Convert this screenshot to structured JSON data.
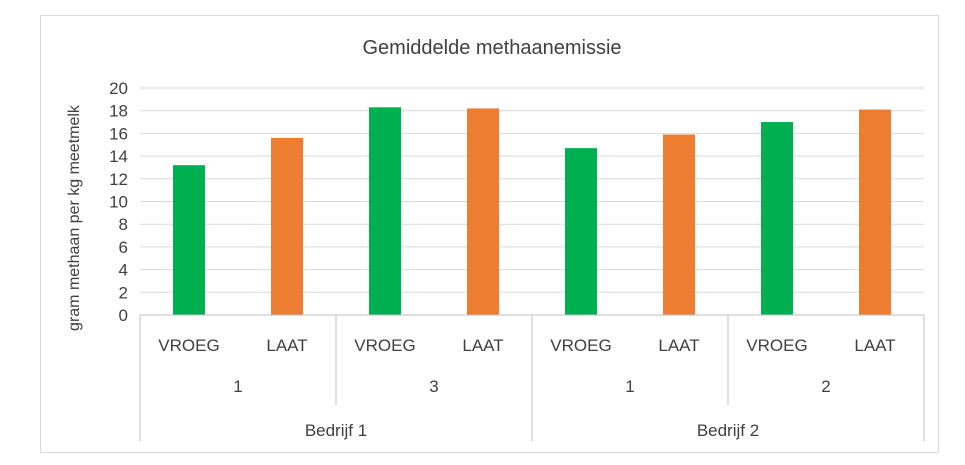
{
  "chart_data": {
    "type": "bar",
    "title": "Gemiddelde methaanemissie",
    "ylabel": "gram methaan per kg meetmelk",
    "xlabel": "",
    "ylim": [
      0,
      20
    ],
    "yticks": [
      "0",
      "2",
      "4",
      "6",
      "8",
      "10",
      "12",
      "14",
      "16",
      "18",
      "20"
    ],
    "grid": true,
    "legend": "none",
    "categories": [
      "VROEG",
      "LAAT",
      "VROEG",
      "LAAT",
      "VROEG",
      "LAAT",
      "VROEG",
      "LAAT"
    ],
    "values": [
      13.2,
      15.6,
      18.3,
      18.2,
      14.7,
      15.9,
      17.0,
      18.1
    ],
    "bar_colors": [
      "#00b050",
      "#ed7d31",
      "#00b050",
      "#ed7d31",
      "#00b050",
      "#ed7d31",
      "#00b050",
      "#ed7d31"
    ],
    "group_level_1": [
      "1",
      "3",
      "1",
      "2"
    ],
    "group_level_2": [
      "Bedrijf 1",
      "Bedrijf 2"
    ]
  },
  "colors": {
    "vroeg": "#00b050",
    "laat": "#ed7d31",
    "grid": "#d9d9d9",
    "axis": "#bfbfbf",
    "text": "#404040"
  }
}
